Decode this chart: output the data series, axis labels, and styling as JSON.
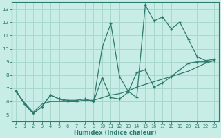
{
  "xlabel": "Humidex (Indice chaleur)",
  "ylabel": "",
  "bg_color": "#c8ece6",
  "grid_color": "#a8d8cc",
  "line_color": "#2d7a6e",
  "xlim": [
    -0.5,
    23.5
  ],
  "ylim": [
    4.5,
    13.5
  ],
  "xticks": [
    0,
    1,
    2,
    3,
    4,
    5,
    6,
    7,
    8,
    9,
    10,
    11,
    12,
    13,
    14,
    15,
    16,
    17,
    18,
    19,
    20,
    21,
    22,
    23
  ],
  "yticks": [
    5,
    6,
    7,
    8,
    9,
    10,
    11,
    12,
    13
  ],
  "line1_x": [
    0,
    1,
    2,
    3,
    4,
    5,
    6,
    7,
    8,
    9,
    10,
    11,
    12,
    13,
    14,
    15,
    16,
    17,
    18,
    19,
    20,
    21,
    22,
    23
  ],
  "line1_y": [
    6.8,
    5.8,
    5.1,
    5.6,
    6.5,
    6.2,
    6.1,
    6.1,
    6.2,
    6.0,
    10.1,
    11.9,
    7.9,
    6.8,
    6.3,
    13.3,
    12.1,
    12.4,
    11.5,
    12.0,
    10.7,
    9.4,
    9.1,
    9.2
  ],
  "line2_x": [
    0,
    1,
    2,
    3,
    4,
    5,
    6,
    7,
    8,
    9,
    10,
    11,
    12,
    13,
    14,
    15,
    16,
    17,
    18,
    19,
    20,
    21,
    22,
    23
  ],
  "line2_y": [
    6.8,
    5.8,
    5.1,
    5.6,
    6.5,
    6.2,
    6.0,
    6.0,
    6.1,
    6.0,
    7.8,
    6.3,
    6.2,
    6.7,
    8.2,
    8.4,
    7.1,
    7.4,
    7.9,
    8.4,
    8.9,
    9.0,
    9.0,
    9.1
  ],
  "line3_x": [
    0,
    1,
    2,
    3,
    4,
    5,
    6,
    7,
    8,
    9,
    10,
    11,
    12,
    13,
    14,
    15,
    16,
    17,
    18,
    19,
    20,
    21,
    22,
    23
  ],
  "line3_y": [
    6.8,
    5.9,
    5.2,
    5.8,
    6.0,
    6.0,
    6.0,
    6.0,
    6.1,
    6.1,
    6.3,
    6.5,
    6.6,
    6.8,
    7.1,
    7.3,
    7.5,
    7.7,
    7.9,
    8.1,
    8.3,
    8.6,
    8.9,
    9.1
  ],
  "marker": "+"
}
